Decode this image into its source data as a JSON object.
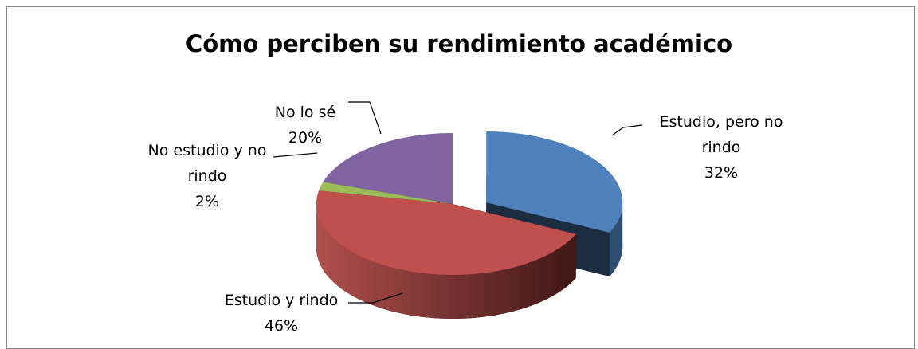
{
  "chart_data": {
    "type": "pie",
    "title": "Cómo perciben su rendimiento académico",
    "categories": [
      "Estudio, pero no rindo",
      "Estudio y rindo",
      "No estudio y no rindo",
      "No lo sé"
    ],
    "values": [
      32,
      46,
      2,
      20
    ],
    "value_labels": [
      "32%",
      "46%",
      "2%",
      "20%"
    ],
    "colors": [
      "#4f81bd",
      "#c0504d",
      "#9bbb59",
      "#8064a2"
    ],
    "explode": [
      true,
      false,
      false,
      false
    ]
  }
}
